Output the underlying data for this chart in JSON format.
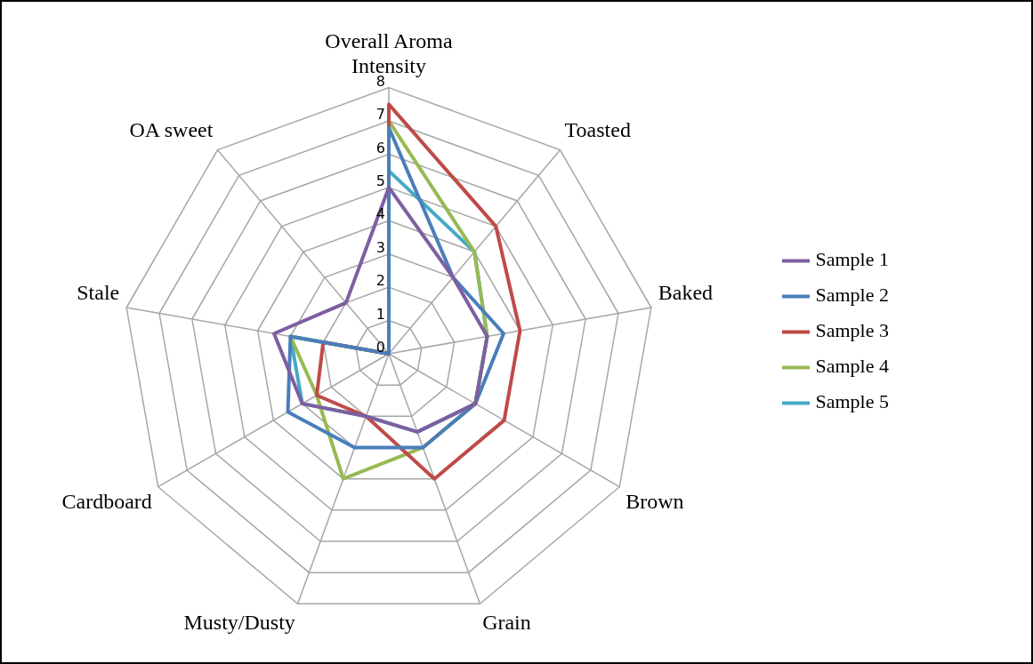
{
  "chart_data": {
    "type": "radar",
    "categories": [
      "Overall Aroma Intensity",
      "Toasted",
      "Baked",
      "Brown",
      "Grain",
      "Musty/Dusty",
      "Cardboard",
      "Stale",
      "OA sweet"
    ],
    "series": [
      {
        "name": "Sample 1",
        "color": "#7d5fa0",
        "values": [
          5,
          3,
          3,
          3,
          2.5,
          2,
          3,
          3.5,
          2
        ]
      },
      {
        "name": "Sample 2",
        "color": "#4a7ebb",
        "values": [
          6.8,
          3,
          3.5,
          3,
          3,
          3,
          3.5,
          3,
          0
        ]
      },
      {
        "name": "Sample 3",
        "color": "#be4b48",
        "values": [
          7.5,
          5,
          4,
          4,
          4,
          2,
          2.5,
          2,
          0
        ]
      },
      {
        "name": "Sample 4",
        "color": "#98b954",
        "values": [
          7,
          4,
          3,
          3,
          3,
          4,
          2.5,
          3,
          0
        ]
      },
      {
        "name": "Sample 5",
        "color": "#46aac5",
        "values": [
          5.5,
          4,
          3,
          3,
          2.5,
          2,
          3,
          3,
          0
        ]
      }
    ],
    "ylim": [
      0,
      8
    ],
    "yticks": [
      0,
      1,
      2,
      3,
      4,
      5,
      6,
      7,
      8
    ],
    "grid": true,
    "legend": "right",
    "marker": "none",
    "line_style": "solid"
  }
}
